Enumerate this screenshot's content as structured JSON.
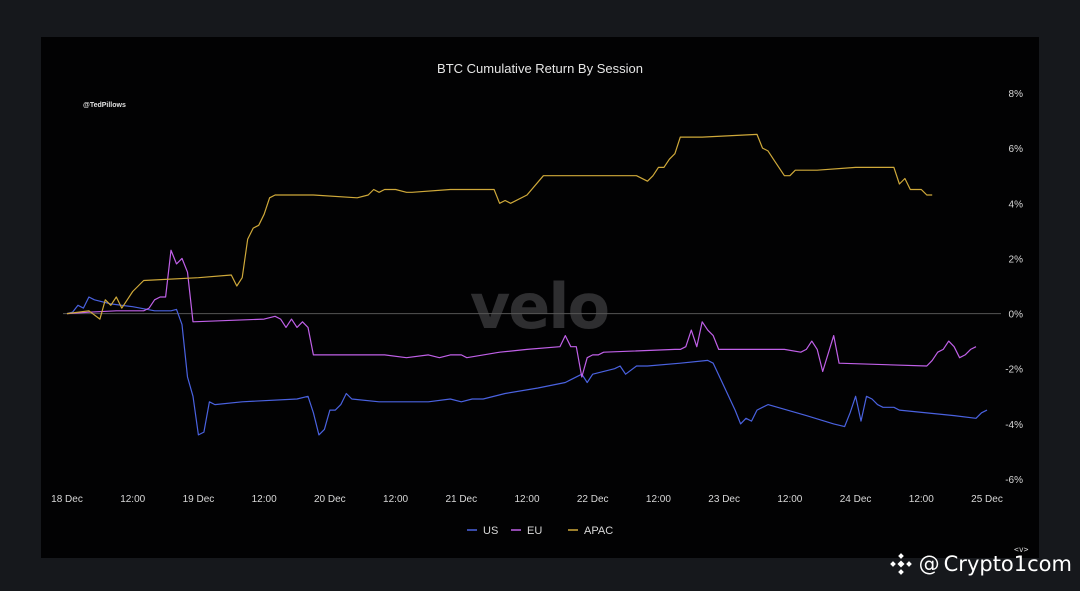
{
  "chart_data": {
    "type": "line",
    "title": "BTC Cumulative Return By Session",
    "handle": "@TedPillows",
    "watermark": "velo",
    "xlabel": "",
    "ylabel": "",
    "x_ticks": [
      {
        "label": "18 Dec",
        "t": 0
      },
      {
        "label": "12:00",
        "t": 12
      },
      {
        "label": "19 Dec",
        "t": 24
      },
      {
        "label": "12:00",
        "t": 36
      },
      {
        "label": "20 Dec",
        "t": 48
      },
      {
        "label": "12:00",
        "t": 60
      },
      {
        "label": "21 Dec",
        "t": 72
      },
      {
        "label": "12:00",
        "t": 84
      },
      {
        "label": "22 Dec",
        "t": 96
      },
      {
        "label": "12:00",
        "t": 108
      },
      {
        "label": "23 Dec",
        "t": 120
      },
      {
        "label": "12:00",
        "t": 132
      },
      {
        "label": "24 Dec",
        "t": 144
      },
      {
        "label": "12:00",
        "t": 156
      },
      {
        "label": "25 Dec",
        "t": 168
      }
    ],
    "y_ticks": [
      8,
      6,
      4,
      2,
      0,
      -2,
      -4,
      -6
    ],
    "y_tick_labels": [
      "8%",
      "6%",
      "4%",
      "2%",
      "0%",
      "-2%",
      "-4%",
      "-6%"
    ],
    "ylim": [
      -6,
      8
    ],
    "xlim": [
      0,
      168
    ],
    "grid": false,
    "zero_line": true,
    "legend_position": "bottom-center",
    "series": [
      {
        "name": "US",
        "color": "#4a62e0",
        "points": [
          [
            0,
            0
          ],
          [
            1,
            0.05
          ],
          [
            2,
            0.3
          ],
          [
            3,
            0.2
          ],
          [
            4,
            0.6
          ],
          [
            5,
            0.5
          ],
          [
            6,
            0.45
          ],
          [
            8,
            0.35
          ],
          [
            10,
            0.3
          ],
          [
            12,
            0.25
          ],
          [
            16,
            0.1
          ],
          [
            19,
            0.1
          ],
          [
            20,
            0.15
          ],
          [
            21,
            -0.4
          ],
          [
            22,
            -2.3
          ],
          [
            23,
            -3.0
          ],
          [
            24,
            -4.4
          ],
          [
            25,
            -4.3
          ],
          [
            26,
            -3.2
          ],
          [
            27,
            -3.3
          ],
          [
            32,
            -3.2
          ],
          [
            42,
            -3.1
          ],
          [
            44,
            -3.0
          ],
          [
            45,
            -3.6
          ],
          [
            46,
            -4.4
          ],
          [
            47,
            -4.2
          ],
          [
            48,
            -3.5
          ],
          [
            49,
            -3.5
          ],
          [
            50,
            -3.3
          ],
          [
            51,
            -2.9
          ],
          [
            52,
            -3.1
          ],
          [
            57,
            -3.2
          ],
          [
            66,
            -3.2
          ],
          [
            70,
            -3.1
          ],
          [
            72,
            -3.2
          ],
          [
            74,
            -3.1
          ],
          [
            76,
            -3.1
          ],
          [
            80,
            -2.9
          ],
          [
            86,
            -2.7
          ],
          [
            91,
            -2.5
          ],
          [
            92,
            -2.4
          ],
          [
            94,
            -2.2
          ],
          [
            95,
            -2.5
          ],
          [
            96,
            -2.2
          ],
          [
            100,
            -2.0
          ],
          [
            101,
            -1.9
          ],
          [
            102,
            -2.2
          ],
          [
            104,
            -1.9
          ],
          [
            106,
            -1.9
          ],
          [
            112,
            -1.8
          ],
          [
            117,
            -1.7
          ],
          [
            118,
            -1.8
          ],
          [
            122,
            -3.5
          ],
          [
            123,
            -4.0
          ],
          [
            124,
            -3.8
          ],
          [
            125,
            -3.9
          ],
          [
            126,
            -3.5
          ],
          [
            128,
            -3.3
          ],
          [
            135,
            -3.7
          ],
          [
            140,
            -4.0
          ],
          [
            142,
            -4.1
          ],
          [
            143,
            -3.6
          ],
          [
            144,
            -3.0
          ],
          [
            145,
            -3.9
          ],
          [
            146,
            -3.0
          ],
          [
            147,
            -3.1
          ],
          [
            148,
            -3.3
          ],
          [
            149,
            -3.4
          ],
          [
            151,
            -3.4
          ],
          [
            152,
            -3.5
          ],
          [
            162,
            -3.7
          ],
          [
            166,
            -3.8
          ],
          [
            167,
            -3.6
          ],
          [
            168,
            -3.5
          ]
        ]
      },
      {
        "name": "EU",
        "color": "#c060e8",
        "points": [
          [
            0,
            0
          ],
          [
            4,
            0.05
          ],
          [
            9,
            0.1
          ],
          [
            14,
            0.1
          ],
          [
            15,
            0.2
          ],
          [
            16,
            0.5
          ],
          [
            17,
            0.6
          ],
          [
            18,
            0.6
          ],
          [
            19,
            2.3
          ],
          [
            20,
            1.8
          ],
          [
            21,
            2.0
          ],
          [
            22,
            1.5
          ],
          [
            23,
            -0.3
          ],
          [
            36,
            -0.2
          ],
          [
            38,
            -0.1
          ],
          [
            39,
            -0.2
          ],
          [
            40,
            -0.5
          ],
          [
            41,
            -0.2
          ],
          [
            42,
            -0.5
          ],
          [
            43,
            -0.3
          ],
          [
            44,
            -0.5
          ],
          [
            45,
            -1.5
          ],
          [
            54,
            -1.5
          ],
          [
            58,
            -1.5
          ],
          [
            62,
            -1.6
          ],
          [
            66,
            -1.5
          ],
          [
            68,
            -1.6
          ],
          [
            70,
            -1.5
          ],
          [
            72,
            -1.5
          ],
          [
            73,
            -1.6
          ],
          [
            79,
            -1.4
          ],
          [
            84,
            -1.3
          ],
          [
            90,
            -1.2
          ],
          [
            91,
            -0.8
          ],
          [
            92,
            -1.2
          ],
          [
            93,
            -1.2
          ],
          [
            94,
            -2.3
          ],
          [
            95,
            -1.6
          ],
          [
            96,
            -1.5
          ],
          [
            97,
            -1.5
          ],
          [
            98,
            -1.4
          ],
          [
            111,
            -1.3
          ],
          [
            112,
            -1.3
          ],
          [
            113,
            -1.2
          ],
          [
            114,
            -0.6
          ],
          [
            115,
            -1.2
          ],
          [
            116,
            -0.3
          ],
          [
            117,
            -0.6
          ],
          [
            118,
            -0.8
          ],
          [
            119,
            -1.3
          ],
          [
            131,
            -1.3
          ],
          [
            134,
            -1.4
          ],
          [
            135,
            -1.3
          ],
          [
            136,
            -1.0
          ],
          [
            137,
            -1.3
          ],
          [
            138,
            -2.1
          ],
          [
            140,
            -0.8
          ],
          [
            141,
            -1.8
          ],
          [
            157,
            -1.9
          ],
          [
            158,
            -1.7
          ],
          [
            159,
            -1.4
          ],
          [
            160,
            -1.3
          ],
          [
            161,
            -1.0
          ],
          [
            162,
            -1.2
          ],
          [
            163,
            -1.6
          ],
          [
            164,
            -1.5
          ],
          [
            165,
            -1.3
          ],
          [
            166,
            -1.2
          ]
        ]
      },
      {
        "name": "APAC",
        "color": "#cfa93a",
        "points": [
          [
            0,
            0
          ],
          [
            4,
            0.1
          ],
          [
            6,
            -0.2
          ],
          [
            7,
            0.5
          ],
          [
            8,
            0.3
          ],
          [
            9,
            0.6
          ],
          [
            10,
            0.2
          ],
          [
            12,
            0.8
          ],
          [
            14,
            1.2
          ],
          [
            24,
            1.3
          ],
          [
            30,
            1.4
          ],
          [
            31,
            1.0
          ],
          [
            32,
            1.3
          ],
          [
            33,
            2.7
          ],
          [
            34,
            3.1
          ],
          [
            35,
            3.2
          ],
          [
            36,
            3.6
          ],
          [
            37,
            4.2
          ],
          [
            38,
            4.3
          ],
          [
            45,
            4.3
          ],
          [
            53,
            4.2
          ],
          [
            55,
            4.3
          ],
          [
            56,
            4.5
          ],
          [
            57,
            4.4
          ],
          [
            58,
            4.5
          ],
          [
            60,
            4.5
          ],
          [
            62,
            4.4
          ],
          [
            63,
            4.4
          ],
          [
            70,
            4.5
          ],
          [
            78,
            4.5
          ],
          [
            79,
            4.0
          ],
          [
            80,
            4.1
          ],
          [
            81,
            4.0
          ],
          [
            84,
            4.3
          ],
          [
            87,
            5.0
          ],
          [
            104,
            5.0
          ],
          [
            106,
            4.8
          ],
          [
            107,
            5.0
          ],
          [
            108,
            5.3
          ],
          [
            109,
            5.3
          ],
          [
            110,
            5.6
          ],
          [
            111,
            5.8
          ],
          [
            112,
            6.4
          ],
          [
            116,
            6.4
          ],
          [
            126,
            6.5
          ],
          [
            127,
            6.0
          ],
          [
            128,
            5.9
          ],
          [
            129,
            5.6
          ],
          [
            131,
            5.0
          ],
          [
            132,
            5.0
          ],
          [
            133,
            5.2
          ],
          [
            134,
            5.2
          ],
          [
            137,
            5.2
          ],
          [
            144,
            5.3
          ],
          [
            151,
            5.3
          ],
          [
            152,
            4.7
          ],
          [
            153,
            4.9
          ],
          [
            154,
            4.5
          ],
          [
            156,
            4.5
          ],
          [
            157,
            4.3
          ],
          [
            158,
            4.3
          ]
        ]
      }
    ]
  },
  "footer": {
    "chevrons": "<v>",
    "source_at": "@",
    "source_name": "Crypto1com",
    "logo_icon": "diamond-logo-icon"
  }
}
